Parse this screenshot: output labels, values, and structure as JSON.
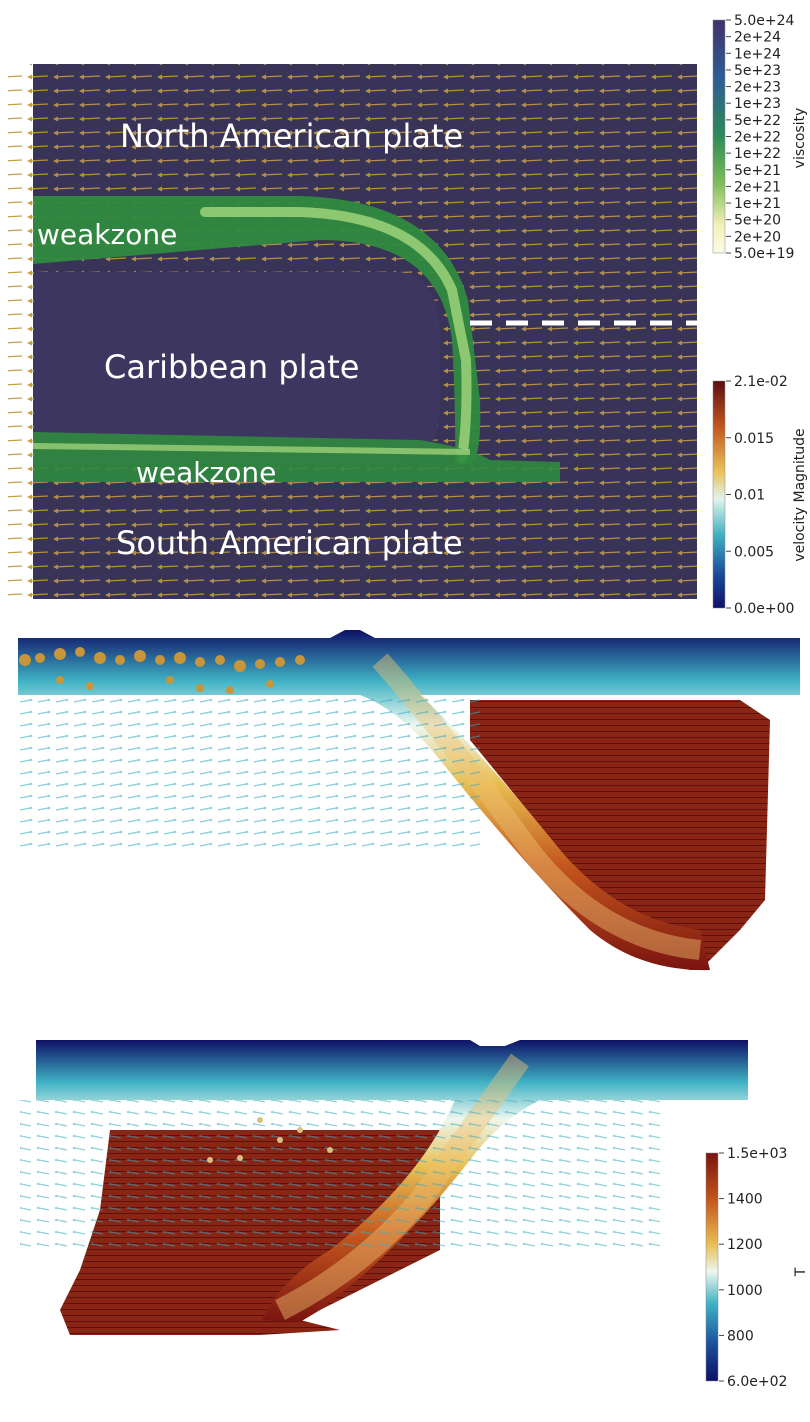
{
  "map": {
    "labels": {
      "north": "North American plate",
      "caribbean": "Caribbean plate",
      "weak_top": "weakzone",
      "weak_bottom": "weakzone",
      "south": "South American plate"
    },
    "colors": {
      "plate": "#3a3358",
      "weakzone": "#2f8a3f",
      "weakzone_light": "#9fd27a",
      "arrow": "#c8a040",
      "dash": "#ffffff"
    }
  },
  "colorbars": {
    "viscosity": {
      "title": "viscosity",
      "scale": "log",
      "ticks": [
        "5.0e+24",
        "2e+24",
        "1e+24",
        "5e+23",
        "2e+23",
        "1e+23",
        "5e+22",
        "2e+22",
        "1e+22",
        "5e+21",
        "2e+21",
        "1e+21",
        "5e+20",
        "2e+20",
        "5.0e+19"
      ],
      "colors": [
        "#40336a",
        "#2e5c96",
        "#2e8a58",
        "#7dbd5a",
        "#f5f0b8",
        "#fefbe8"
      ]
    },
    "velocity": {
      "title": "velocity Magnitude",
      "ticks": [
        "2.1e-02",
        "0.015",
        "0.01",
        "0.005",
        "0.0e+00"
      ],
      "colors": [
        "#5c0e14",
        "#c2561e",
        "#e9c35a",
        "#e0f4ec",
        "#3fb0c0",
        "#1a4c9c",
        "#10106a"
      ]
    },
    "temperature": {
      "title": "T",
      "ticks": [
        "1.5e+03",
        "1400",
        "1200",
        "1000",
        "800",
        "6.0e+02"
      ],
      "colors": [
        "#7a1410",
        "#c2541c",
        "#e8bf52",
        "#eef7ee",
        "#3fb2c4",
        "#1b4e9c",
        "#0e1066"
      ]
    }
  }
}
